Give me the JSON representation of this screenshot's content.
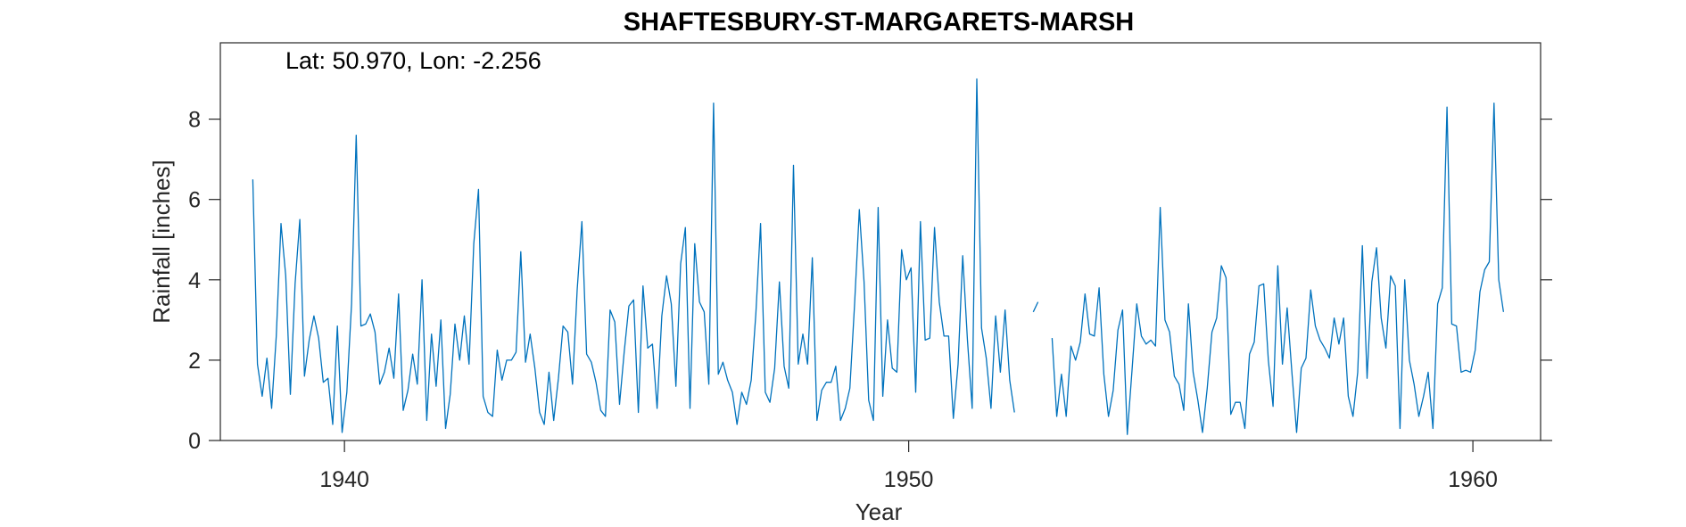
{
  "chart_data": {
    "type": "line",
    "title": "SHAFTESBURY-ST-MARGARETS-MARSH",
    "annotation": "Lat: 50.970, Lon: -2.256",
    "xlabel": "Year",
    "ylabel": "Rainfall [inches]",
    "xlim": [
      1937.8,
      1961.2
    ],
    "ylim": [
      0,
      9.9
    ],
    "xticks": [
      1940,
      1950,
      1960
    ],
    "xtick_labels": [
      "1940",
      "1950",
      "1960"
    ],
    "yticks": [
      0,
      2,
      4,
      6,
      8
    ],
    "ytick_labels": [
      "0",
      "2",
      "4",
      "6",
      "8"
    ],
    "grid": false,
    "legend": "none",
    "line_color": "#0072BD",
    "series": [
      {
        "x_start": 1938.375,
        "x_step": 0.0833333,
        "values": [
          6.5,
          1.9,
          1.1,
          2.05,
          0.8,
          2.6,
          5.4,
          4.1,
          1.15,
          3.9,
          5.5,
          1.6,
          2.5,
          3.1,
          2.55,
          1.45,
          1.55,
          0.4,
          2.85,
          0.2,
          1.2,
          3.4,
          7.6,
          2.85,
          2.9,
          3.15,
          2.7,
          1.4,
          1.7,
          2.3,
          1.55,
          3.65,
          0.75,
          1.25,
          2.15,
          1.4,
          4.0,
          0.5,
          2.65,
          1.35,
          3.0,
          0.3,
          1.15,
          2.9,
          2.0,
          3.1,
          1.9,
          4.9,
          6.25,
          1.1,
          0.7,
          0.6,
          2.25,
          1.5,
          2.0,
          2.0,
          2.2,
          4.7,
          1.95,
          2.65,
          1.8,
          0.7,
          0.4,
          1.7,
          0.5,
          1.55,
          2.85,
          2.7,
          1.4,
          3.75,
          5.45,
          2.15,
          1.95,
          1.45,
          0.75,
          0.6,
          3.25,
          2.95,
          0.9,
          2.2,
          3.35,
          3.5,
          0.7,
          3.85,
          2.3,
          2.4,
          0.8,
          3.1,
          4.1,
          3.4,
          1.35,
          4.4,
          5.3,
          0.8,
          4.9,
          3.45,
          3.2,
          1.4,
          8.4,
          1.65,
          1.95,
          1.5,
          1.2,
          0.4,
          1.2,
          0.9,
          1.5,
          3.15,
          5.4,
          1.2,
          0.95,
          1.8,
          3.95,
          1.85,
          1.3,
          6.85,
          1.9,
          2.65,
          1.9,
          4.55,
          0.5,
          1.25,
          1.45,
          1.45,
          1.85,
          0.5,
          0.8,
          1.3,
          3.4,
          5.75,
          3.95,
          1.0,
          0.5,
          5.8,
          1.1,
          3.0,
          1.8,
          1.7,
          4.75,
          4.0,
          4.3,
          1.2,
          5.45,
          2.5,
          2.55,
          5.3,
          3.45,
          2.6,
          2.6,
          0.55,
          1.9,
          4.6,
          2.5,
          0.8,
          9.0,
          2.8,
          2.05,
          0.8,
          3.1,
          1.7,
          3.25,
          1.5,
          0.7,
          null,
          null,
          null,
          3.2,
          3.45,
          null,
          null,
          2.55,
          0.6,
          1.65,
          0.6,
          2.35,
          2.0,
          2.45,
          3.65,
          2.65,
          2.6,
          3.8,
          1.65,
          0.6,
          1.25,
          2.75,
          3.25,
          0.15,
          1.75,
          3.4,
          2.6,
          2.4,
          2.5,
          2.35,
          5.8,
          3.0,
          2.7,
          1.6,
          1.4,
          0.75,
          3.4,
          1.7,
          1.0,
          0.2,
          1.3,
          2.7,
          3.05,
          4.35,
          4.05,
          0.65,
          0.95,
          0.95,
          0.3,
          2.15,
          2.45,
          3.85,
          3.9,
          2.0,
          0.85,
          4.35,
          1.9,
          3.3,
          1.7,
          0.2,
          1.8,
          2.05,
          3.75,
          2.85,
          2.5,
          2.3,
          2.05,
          3.05,
          2.4,
          3.05,
          1.1,
          0.6,
          1.7,
          4.85,
          1.55,
          3.95,
          4.8,
          3.05,
          2.3,
          4.1,
          3.85,
          0.3,
          4.0,
          2.0,
          1.4,
          0.6,
          1.1,
          1.7,
          0.3,
          3.4,
          3.8,
          8.3,
          2.9,
          2.85,
          1.7,
          1.75,
          1.7,
          2.25,
          3.7,
          4.25,
          4.45,
          8.4,
          4.0,
          3.2
        ]
      }
    ]
  }
}
